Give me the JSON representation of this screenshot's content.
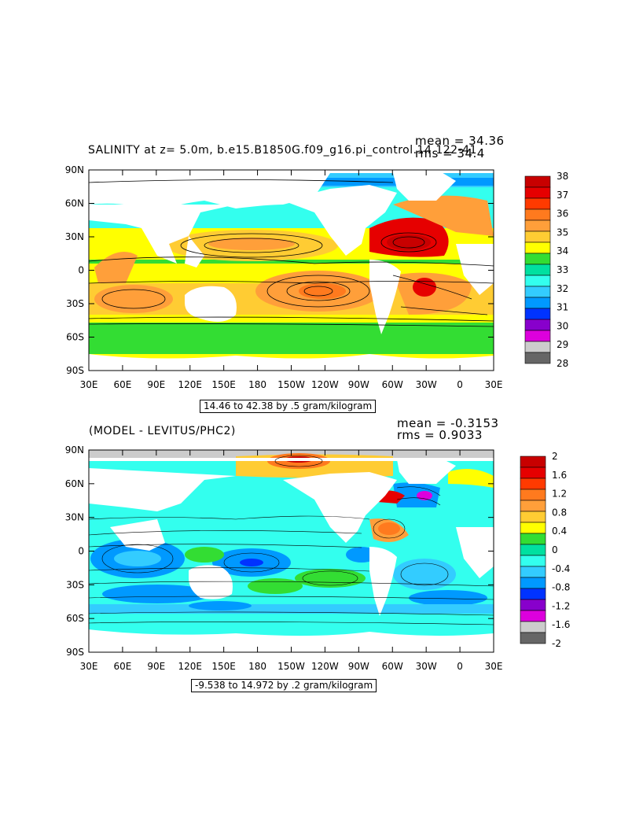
{
  "colors": {
    "land": "#ffffff",
    "contour": "#000000"
  },
  "top_panel": {
    "title": "SALINITY at z=    5.0m, b.e15.B1850G.f09_g16.pi_control.14 122-41",
    "stat_mean": "mean = 34.36",
    "stat_rms": "rms = 34.4",
    "range_label": "14.46 to 42.38 by .5 gram/kilogram",
    "lat_labels": [
      "90N",
      "60N",
      "30N",
      "0",
      "30S",
      "60S",
      "90S"
    ],
    "lon_labels": [
      "30E",
      "60E",
      "90E",
      "120E",
      "150E",
      "180",
      "150W",
      "120W",
      "90W",
      "60W",
      "30W",
      "0",
      "30E"
    ],
    "colorbar_labels": [
      "38",
      "37",
      "36",
      "35",
      "34",
      "33",
      "32",
      "31",
      "30",
      "29",
      "28"
    ],
    "colorbar_colors": [
      "#c80000",
      "#e60000",
      "#ff3a00",
      "#ff7a1e",
      "#ff9f3a",
      "#ffcc33",
      "#ffff00",
      "#33dd33",
      "#00e0a0",
      "#33ffee",
      "#33ccff",
      "#0099ff",
      "#0033ff",
      "#8800cc",
      "#dd00dd",
      "#cccccc",
      "#666666"
    ]
  },
  "bottom_panel": {
    "title": "(MODEL - LEVITUS/PHC2)",
    "stat_mean": "mean = -0.3153",
    "stat_rms": "rms = 0.9033",
    "range_label": "-9.538 to 14.972 by .2 gram/kilogram",
    "lat_labels": [
      "90N",
      "60N",
      "30N",
      "0",
      "30S",
      "60S",
      "90S"
    ],
    "lon_labels": [
      "30E",
      "60E",
      "90E",
      "120E",
      "150E",
      "180",
      "150W",
      "120W",
      "90W",
      "60W",
      "30W",
      "0",
      "30E"
    ],
    "colorbar_labels": [
      "2",
      "1.6",
      "1.2",
      "0.8",
      "0.4",
      "0",
      "-0.4",
      "-0.8",
      "-1.2",
      "-1.6",
      "-2"
    ],
    "colorbar_colors": [
      "#c80000",
      "#e60000",
      "#ff3a00",
      "#ff7a1e",
      "#ff9f3a",
      "#ffcc33",
      "#ffff00",
      "#33dd33",
      "#00e0a0",
      "#33ffee",
      "#33ccff",
      "#0099ff",
      "#0033ff",
      "#8800cc",
      "#dd00dd",
      "#cccccc",
      "#666666"
    ]
  }
}
